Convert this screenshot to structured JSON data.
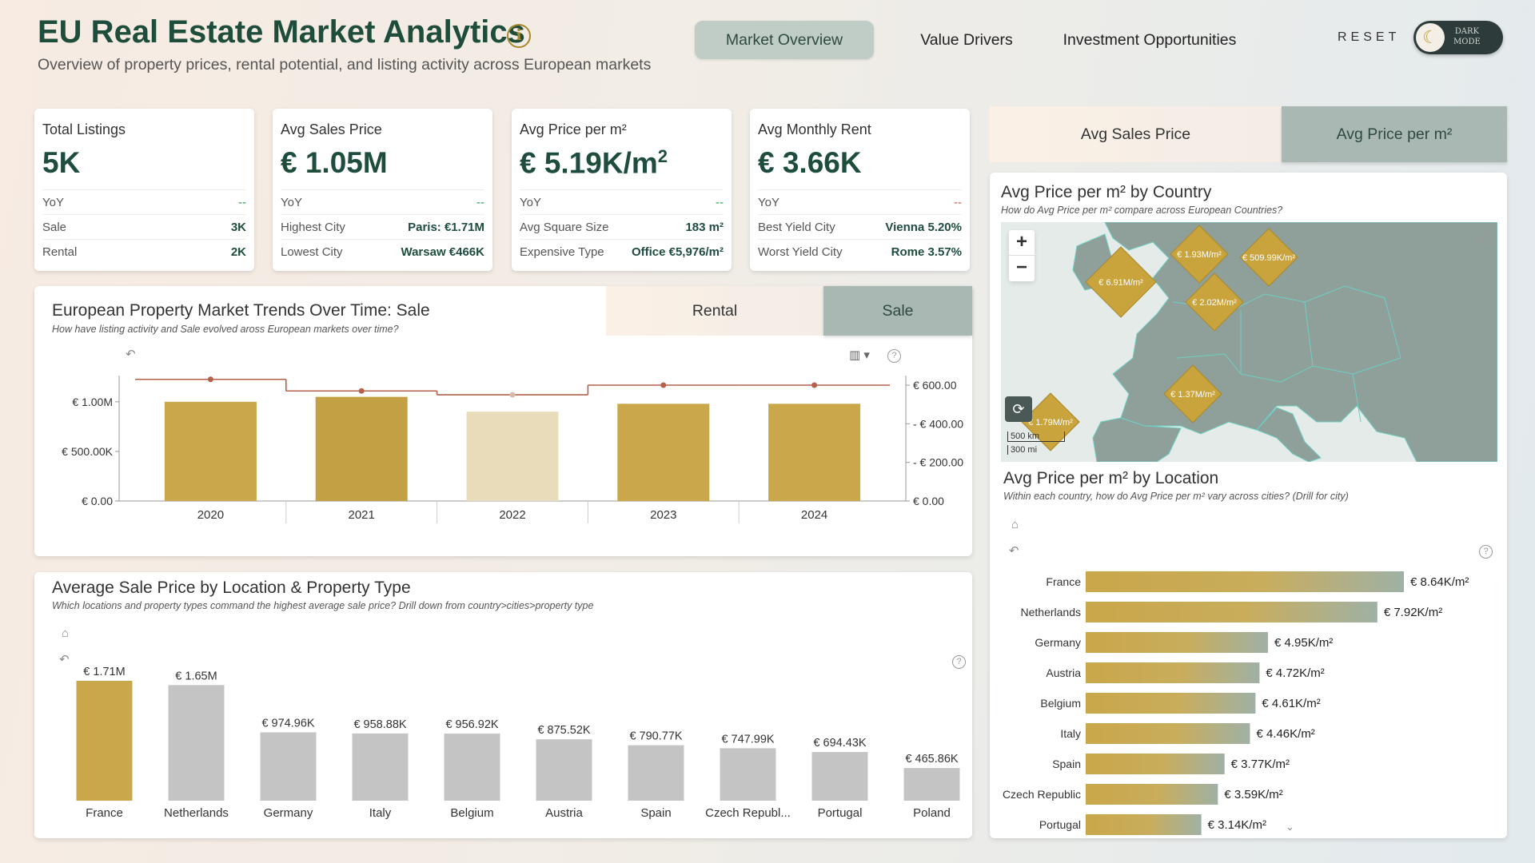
{
  "header": {
    "title": "EU Real Estate Market Analytics",
    "subtitle": "Overview of property prices, rental potential, and listing activity across European markets",
    "nav": [
      "Market Overview",
      "Value Drivers",
      "Investment Opportunities"
    ],
    "reset": "RESET",
    "dark_mode_line1": "DARK",
    "dark_mode_line2": "MODE"
  },
  "kpis": [
    {
      "title": "Total Listings",
      "value": "5K",
      "rows": [
        [
          "YoY",
          "--"
        ],
        [
          "Sale",
          "3K"
        ],
        [
          "Rental",
          "2K"
        ]
      ]
    },
    {
      "title": "Avg Sales Price",
      "value": "€ 1.05M",
      "rows": [
        [
          "YoY",
          "--"
        ],
        [
          "Highest City",
          "Paris: €1.71M"
        ],
        [
          "Lowest City",
          "Warsaw €466K"
        ]
      ]
    },
    {
      "title": "Avg Price per m²",
      "value": "€ 5.19K/m",
      "value_sup": "2",
      "rows": [
        [
          "YoY",
          "--"
        ],
        [
          "Avg Square Size",
          "183 m²"
        ],
        [
          "Expensive Type",
          "Office €5,976/m²"
        ]
      ]
    },
    {
      "title": "Avg Monthly Rent",
      "value": "€ 3.66K",
      "rows": [
        [
          "YoY",
          "--"
        ],
        [
          "Best Yield City",
          "Vienna 5.20%"
        ],
        [
          "Worst Yield City",
          "Rome 3.57%"
        ]
      ]
    }
  ],
  "colors": {
    "gold": "#c9a74a",
    "gold_dark": "#c3a043",
    "gold_light": "#e9dcbb",
    "grey_bar": "#c4c4c4",
    "line": "#b5604a",
    "green": "#2d9a4f",
    "red": "#d9534f",
    "title_green": "#1f4d3c",
    "map_land": "#8fa09a",
    "map_bg": "#e4ebe9"
  },
  "right_tabs": [
    "Avg Sales Price",
    "Avg Price per m²"
  ],
  "map": {
    "title": "Avg Price per m² by Country",
    "subtitle": "How do Avg Price per m² compare across European Countries?",
    "zoom_in": "+",
    "zoom_out": "−",
    "scale_km": "500 km",
    "scale_mi": "300 mi",
    "markers": [
      "€ 6.91M/m²",
      "€ 1.93M/m²",
      "€ 509.99K/m²",
      "€ 2.02M/m²",
      "€ 1.37M/m²",
      "€ 1.79M/m²"
    ]
  },
  "trend": {
    "title": "European Property Market Trends Over Time: Sale",
    "subtitle": "How have listing activity and Sale evolved aross European markets over time?",
    "tabs": [
      "Rental",
      "Sale"
    ]
  },
  "location_bar": {
    "title": "Avg Price per m² by Location",
    "subtitle": "Within each country, how do Avg Price per m² vary across cities? (Drill for city)"
  },
  "type_bar": {
    "title": "Average Sale Price by Location & Property Type",
    "subtitle": "Which locations and property types command the highest average sale price? Drill down from country>cities>property type"
  },
  "chart_data": [
    {
      "type": "bar",
      "title": "European Property Market Trends Over Time: Sale",
      "categories": [
        "2020",
        "2021",
        "2022",
        "2023",
        "2024"
      ],
      "series": [
        {
          "kind": "bar",
          "axis": "left",
          "values": [
            1.0,
            1.05,
            0.9,
            0.98,
            0.98
          ]
        },
        {
          "kind": "line",
          "axis": "right",
          "values": [
            630,
            570,
            550,
            600,
            600
          ]
        }
      ],
      "ylim": [
        0,
        1.2
      ],
      "y2lim": [
        0,
        600
      ],
      "y_ticks": [
        "€ 0.00",
        "€ 500.00K",
        "€ 1.00M"
      ],
      "y2_ticks": [
        "€ 0.00",
        "- € 200.00",
        "- € 400.00",
        "€ 600.00"
      ]
    },
    {
      "type": "bar",
      "orientation": "horizontal",
      "title": "Avg Price per m² by Location",
      "categories": [
        "France",
        "Netherlands",
        "Germany",
        "Austria",
        "Belgium",
        "Italy",
        "Spain",
        "Czech Republic",
        "Portugal"
      ],
      "values": [
        8.64,
        7.92,
        4.95,
        4.72,
        4.61,
        4.46,
        3.77,
        3.59,
        3.14
      ],
      "labels": [
        "€ 8.64K/m²",
        "€ 7.92K/m²",
        "€ 4.95K/m²",
        "€ 4.72K/m²",
        "€ 4.61K/m²",
        "€ 4.46K/m²",
        "€ 3.77K/m²",
        "€ 3.59K/m²",
        "€ 3.14K/m²"
      ]
    },
    {
      "type": "bar",
      "title": "Average Sale Price by Location & Property Type",
      "categories": [
        "France",
        "Netherlands",
        "Germany",
        "Italy",
        "Belgium",
        "Austria",
        "Spain",
        "Czech Republ...",
        "Portugal",
        "Poland"
      ],
      "values": [
        1710,
        1650,
        974.96,
        958.88,
        956.92,
        875.52,
        790.77,
        747.99,
        694.43,
        465.86
      ],
      "labels": [
        "€ 1.71M",
        "€ 1.65M",
        "€ 974.96K",
        "€ 958.88K",
        "€ 956.92K",
        "€ 875.52K",
        "€ 790.77K",
        "€ 747.99K",
        "€ 694.43K",
        "€ 465.86K"
      ]
    }
  ]
}
